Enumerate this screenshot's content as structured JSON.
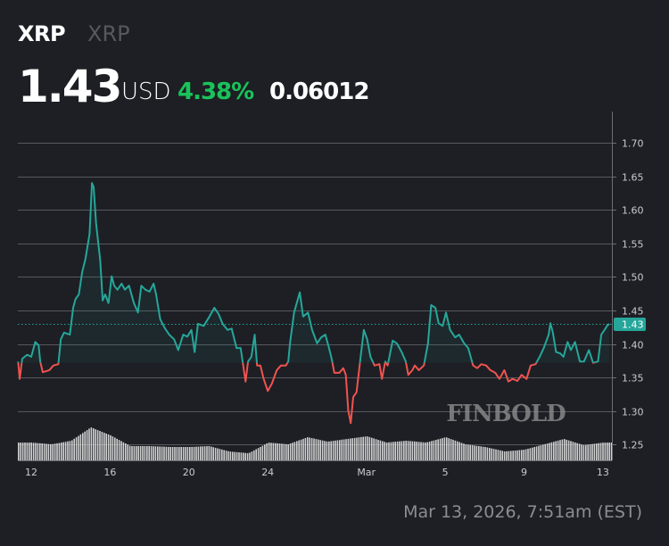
{
  "header": {
    "symbol": "XRP",
    "name": "XRP",
    "price": "1.43",
    "currency": "USD",
    "change_pct": "4.38%",
    "change_abs": "0.06012"
  },
  "footer": {
    "timestamp": "Mar 13, 2026, 7:51am (EST)"
  },
  "watermark": "FINBOLD",
  "colors": {
    "background": "#1d1f24",
    "up": "#26a69a",
    "down": "#ef5350",
    "change_positive": "#19c35a",
    "volume": "#e6e6e6"
  },
  "chart_data": {
    "type": "line",
    "style": "baseline",
    "baseline_value": 1.372,
    "current_price": 1.43,
    "current_price_label": "1.43",
    "ylim": [
      1.22,
      1.72
    ],
    "y_ticks": [
      "1.70",
      "1.65",
      "1.60",
      "1.55",
      "1.50",
      "1.45",
      "1.40",
      "1.35",
      "1.30",
      "1.25"
    ],
    "x_ticks": [
      {
        "label": "12",
        "t": "2026-02-12T00:00"
      },
      {
        "label": "16",
        "t": "2026-02-16T00:00"
      },
      {
        "label": "20",
        "t": "2026-02-20T00:00"
      },
      {
        "label": "24",
        "t": "2026-02-24T00:00"
      },
      {
        "label": "Mar",
        "t": "2026-03-01T00:00"
      },
      {
        "label": "5",
        "t": "2026-03-05T00:00"
      },
      {
        "label": "9",
        "t": "2026-03-09T00:00"
      },
      {
        "label": "13",
        "t": "2026-03-13T00:00"
      }
    ],
    "grid": true,
    "series": [
      {
        "points": [
          [
            "2026-02-11T08:00",
            1.374
          ],
          [
            "2026-02-11T10:00",
            1.348
          ],
          [
            "2026-02-11T13:00",
            1.378
          ],
          [
            "2026-02-11T19:00",
            1.384
          ],
          [
            "2026-02-12T00:00",
            1.381
          ],
          [
            "2026-02-12T05:00",
            1.403
          ],
          [
            "2026-02-12T09:00",
            1.398
          ],
          [
            "2026-02-12T11:00",
            1.374
          ],
          [
            "2026-02-12T14:00",
            1.358
          ],
          [
            "2026-02-12T22:00",
            1.361
          ],
          [
            "2026-02-13T03:00",
            1.368
          ],
          [
            "2026-02-13T09:00",
            1.37
          ],
          [
            "2026-02-13T12:00",
            1.407
          ],
          [
            "2026-02-13T16:00",
            1.417
          ],
          [
            "2026-02-13T23:00",
            1.414
          ],
          [
            "2026-02-14T03:00",
            1.454
          ],
          [
            "2026-02-14T06:00",
            1.467
          ],
          [
            "2026-02-14T10:00",
            1.474
          ],
          [
            "2026-02-14T14:00",
            1.507
          ],
          [
            "2026-02-14T18:00",
            1.527
          ],
          [
            "2026-02-14T23:00",
            1.564
          ],
          [
            "2026-02-15T02:00",
            1.64
          ],
          [
            "2026-02-15T04:00",
            1.634
          ],
          [
            "2026-02-15T07:00",
            1.58
          ],
          [
            "2026-02-15T12:00",
            1.524
          ],
          [
            "2026-02-15T15:00",
            1.465
          ],
          [
            "2026-02-15T18:00",
            1.474
          ],
          [
            "2026-02-15T22:00",
            1.461
          ],
          [
            "2026-02-16T02:00",
            1.501
          ],
          [
            "2026-02-16T05:00",
            1.487
          ],
          [
            "2026-02-16T09:00",
            1.481
          ],
          [
            "2026-02-16T14:00",
            1.49
          ],
          [
            "2026-02-16T18:00",
            1.481
          ],
          [
            "2026-02-16T23:00",
            1.487
          ],
          [
            "2026-02-17T05:00",
            1.461
          ],
          [
            "2026-02-17T10:00",
            1.447
          ],
          [
            "2026-02-17T14:00",
            1.487
          ],
          [
            "2026-02-17T19:00",
            1.481
          ],
          [
            "2026-02-18T00:00",
            1.478
          ],
          [
            "2026-02-18T05:00",
            1.49
          ],
          [
            "2026-02-18T08:00",
            1.474
          ],
          [
            "2026-02-18T13:00",
            1.437
          ],
          [
            "2026-02-18T19:00",
            1.423
          ],
          [
            "2026-02-19T00:00",
            1.414
          ],
          [
            "2026-02-19T06:00",
            1.407
          ],
          [
            "2026-02-19T11:00",
            1.391
          ],
          [
            "2026-02-19T17:00",
            1.414
          ],
          [
            "2026-02-19T22:00",
            1.411
          ],
          [
            "2026-02-20T03:00",
            1.421
          ],
          [
            "2026-02-20T07:00",
            1.388
          ],
          [
            "2026-02-20T11:00",
            1.43
          ],
          [
            "2026-02-20T18:00",
            1.427
          ],
          [
            "2026-02-21T01:00",
            1.441
          ],
          [
            "2026-02-21T07:00",
            1.454
          ],
          [
            "2026-02-21T12:00",
            1.445
          ],
          [
            "2026-02-21T17:00",
            1.43
          ],
          [
            "2026-02-21T23:00",
            1.421
          ],
          [
            "2026-02-22T04:00",
            1.423
          ],
          [
            "2026-02-22T10:00",
            1.394
          ],
          [
            "2026-02-22T15:00",
            1.394
          ],
          [
            "2026-02-22T21:00",
            1.344
          ],
          [
            "2026-02-23T00:00",
            1.374
          ],
          [
            "2026-02-23T04:00",
            1.381
          ],
          [
            "2026-02-23T08:00",
            1.414
          ],
          [
            "2026-02-23T11:00",
            1.368
          ],
          [
            "2026-02-23T15:00",
            1.368
          ],
          [
            "2026-02-23T19:00",
            1.348
          ],
          [
            "2026-02-24T00:00",
            1.33
          ],
          [
            "2026-02-24T05:00",
            1.341
          ],
          [
            "2026-02-24T11:00",
            1.361
          ],
          [
            "2026-02-24T16:00",
            1.368
          ],
          [
            "2026-02-24T22:00",
            1.368
          ],
          [
            "2026-02-25T01:00",
            1.374
          ],
          [
            "2026-02-25T03:00",
            1.401
          ],
          [
            "2026-02-25T08:00",
            1.447
          ],
          [
            "2026-02-25T15:00",
            1.477
          ],
          [
            "2026-02-25T19:00",
            1.441
          ],
          [
            "2026-02-26T01:00",
            1.447
          ],
          [
            "2026-02-26T06:00",
            1.421
          ],
          [
            "2026-02-26T12:00",
            1.401
          ],
          [
            "2026-02-26T17:00",
            1.41
          ],
          [
            "2026-02-26T22:00",
            1.414
          ],
          [
            "2026-02-27T02:00",
            1.397
          ],
          [
            "2026-02-27T06:00",
            1.377
          ],
          [
            "2026-02-27T09:00",
            1.357
          ],
          [
            "2026-02-27T15:00",
            1.357
          ],
          [
            "2026-02-27T20:00",
            1.364
          ],
          [
            "2026-02-27T23:00",
            1.354
          ],
          [
            "2026-02-28T02:00",
            1.301
          ],
          [
            "2026-02-28T05:00",
            1.282
          ],
          [
            "2026-02-28T08:00",
            1.321
          ],
          [
            "2026-02-28T12:00",
            1.328
          ],
          [
            "2026-02-28T17:00",
            1.381
          ],
          [
            "2026-02-28T21:00",
            1.421
          ],
          [
            "2026-03-01T01:00",
            1.407
          ],
          [
            "2026-03-01T05:00",
            1.381
          ],
          [
            "2026-03-01T10:00",
            1.368
          ],
          [
            "2026-03-01T16:00",
            1.37
          ],
          [
            "2026-03-01T19:00",
            1.348
          ],
          [
            "2026-03-01T23:00",
            1.374
          ],
          [
            "2026-03-02T02:00",
            1.368
          ],
          [
            "2026-03-02T08:00",
            1.405
          ],
          [
            "2026-03-02T13:00",
            1.401
          ],
          [
            "2026-03-02T19:00",
            1.388
          ],
          [
            "2026-03-03T00:00",
            1.374
          ],
          [
            "2026-03-03T03:00",
            1.354
          ],
          [
            "2026-03-03T08:00",
            1.361
          ],
          [
            "2026-03-03T11:00",
            1.368
          ],
          [
            "2026-03-03T16:00",
            1.361
          ],
          [
            "2026-03-03T22:00",
            1.368
          ],
          [
            "2026-03-04T03:00",
            1.401
          ],
          [
            "2026-03-04T07:00",
            1.458
          ],
          [
            "2026-03-04T12:00",
            1.454
          ],
          [
            "2026-03-04T16:00",
            1.431
          ],
          [
            "2026-03-04T21:00",
            1.427
          ],
          [
            "2026-03-05T01:00",
            1.447
          ],
          [
            "2026-03-05T06:00",
            1.421
          ],
          [
            "2026-03-05T12:00",
            1.41
          ],
          [
            "2026-03-05T17:00",
            1.414
          ],
          [
            "2026-03-05T23:00",
            1.401
          ],
          [
            "2026-03-06T04:00",
            1.394
          ],
          [
            "2026-03-06T10:00",
            1.368
          ],
          [
            "2026-03-06T15:00",
            1.364
          ],
          [
            "2026-03-06T20:00",
            1.37
          ],
          [
            "2026-03-07T02:00",
            1.368
          ],
          [
            "2026-03-07T07:00",
            1.361
          ],
          [
            "2026-03-07T13:00",
            1.357
          ],
          [
            "2026-03-07T18:00",
            1.348
          ],
          [
            "2026-03-08T00:00",
            1.361
          ],
          [
            "2026-03-08T05:00",
            1.344
          ],
          [
            "2026-03-08T10:00",
            1.348
          ],
          [
            "2026-03-08T16:00",
            1.345
          ],
          [
            "2026-03-08T21:00",
            1.354
          ],
          [
            "2026-03-09T03:00",
            1.348
          ],
          [
            "2026-03-09T08:00",
            1.368
          ],
          [
            "2026-03-09T14:00",
            1.37
          ],
          [
            "2026-03-09T19:00",
            1.381
          ],
          [
            "2026-03-10T00:00",
            1.394
          ],
          [
            "2026-03-10T06:00",
            1.414
          ],
          [
            "2026-03-10T08:00",
            1.431
          ],
          [
            "2026-03-10T11:00",
            1.418
          ],
          [
            "2026-03-10T15:00",
            1.388
          ],
          [
            "2026-03-10T20:00",
            1.386
          ],
          [
            "2026-03-11T00:00",
            1.381
          ],
          [
            "2026-03-11T05:00",
            1.403
          ],
          [
            "2026-03-11T09:00",
            1.391
          ],
          [
            "2026-03-11T14:00",
            1.403
          ],
          [
            "2026-03-11T20:00",
            1.374
          ],
          [
            "2026-03-12T01:00",
            1.374
          ],
          [
            "2026-03-12T07:00",
            1.391
          ],
          [
            "2026-03-12T12:00",
            1.372
          ],
          [
            "2026-03-12T18:00",
            1.374
          ],
          [
            "2026-03-12T22:00",
            1.414
          ],
          [
            "2026-03-13T02:00",
            1.421
          ],
          [
            "2026-03-13T05:00",
            1.427
          ],
          [
            "2026-03-13T07:51",
            1.43
          ]
        ]
      }
    ],
    "volume": {
      "t": [
        "2026-02-11",
        "2026-02-12",
        "2026-02-13",
        "2026-02-14",
        "2026-02-15",
        "2026-02-16",
        "2026-02-17",
        "2026-02-18",
        "2026-02-19",
        "2026-02-20",
        "2026-02-21",
        "2026-02-22",
        "2026-02-23",
        "2026-02-24",
        "2026-02-25",
        "2026-02-26",
        "2026-02-27",
        "2026-02-28",
        "2026-03-01",
        "2026-03-02",
        "2026-03-03",
        "2026-03-04",
        "2026-03-05",
        "2026-03-06",
        "2026-03-07",
        "2026-03-08",
        "2026-03-09",
        "2026-03-10",
        "2026-03-11",
        "2026-03-12",
        "2026-03-13"
      ],
      "values": [
        20,
        20,
        18,
        22,
        37,
        28,
        16,
        16,
        15,
        15,
        16,
        10,
        8,
        20,
        18,
        26,
        21,
        24,
        27,
        20,
        22,
        20,
        26,
        18,
        15,
        10,
        12,
        18,
        24,
        17,
        20
      ]
    }
  }
}
